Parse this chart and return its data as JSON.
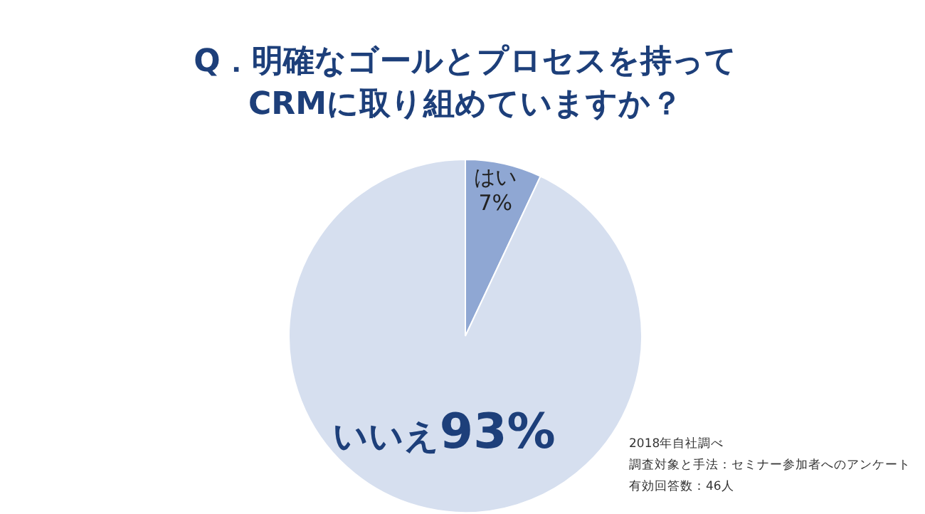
{
  "chart_data": {
    "type": "pie",
    "title": "Q．明確なゴールとプロセスを持って\nCRMに取り組めていますか？",
    "categories": [
      "はい",
      "いいえ"
    ],
    "values": [
      7,
      93
    ],
    "value_labels": [
      "7%",
      "93%"
    ],
    "colors": [
      "#8fa7d3",
      "#d6dfef"
    ],
    "annotations": [
      "2018年自社調べ",
      "調査対象と手法：セミナー参加者へのアンケート",
      "有効回答数：46人"
    ]
  }
}
